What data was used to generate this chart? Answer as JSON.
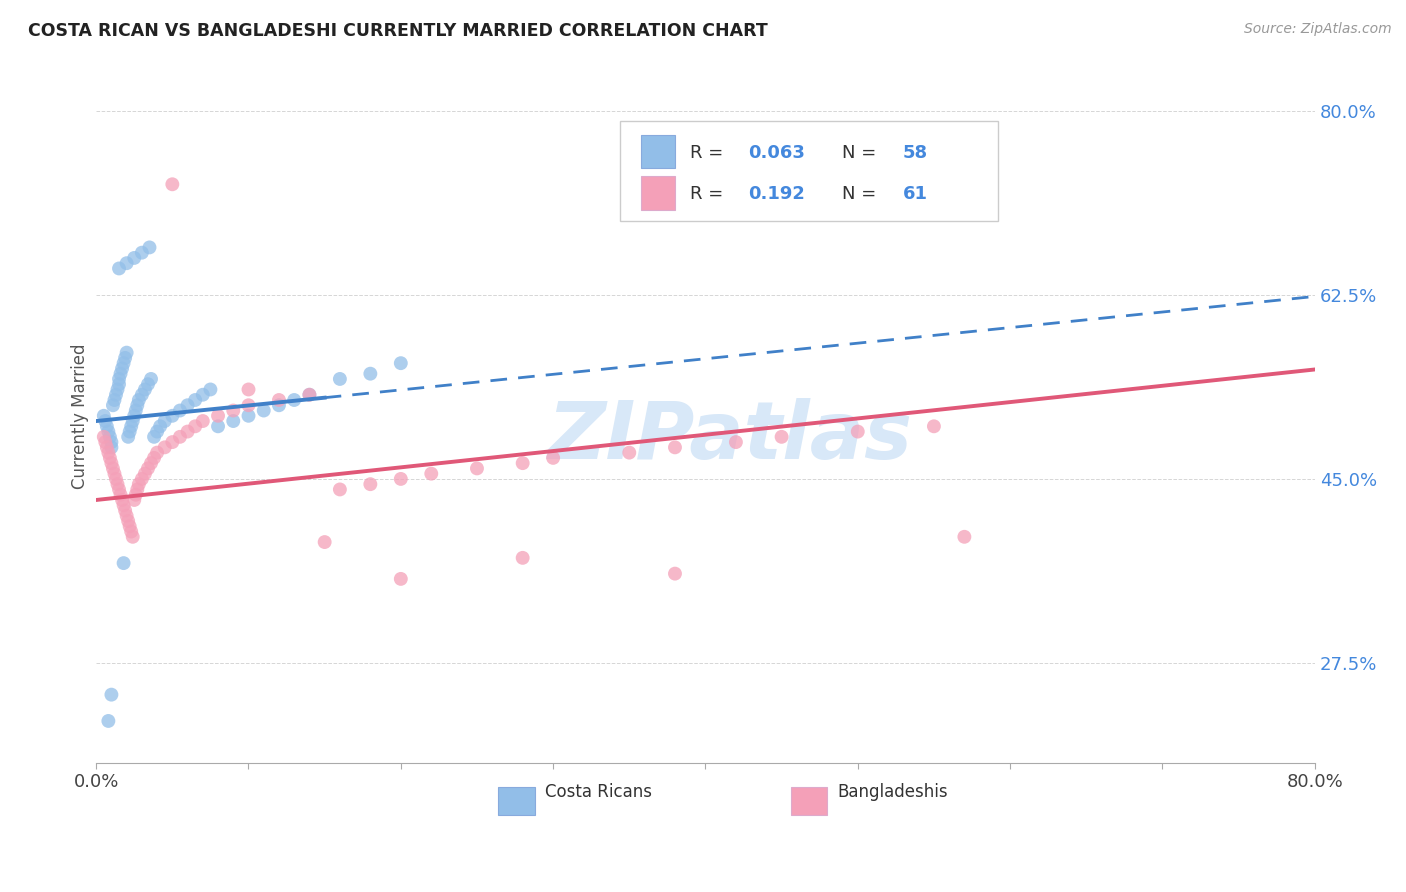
{
  "title": "COSTA RICAN VS BANGLADESHI CURRENTLY MARRIED CORRELATION CHART",
  "source": "Source: ZipAtlas.com",
  "ylabel": "Currently Married",
  "xlim": [
    0.0,
    0.8
  ],
  "ylim": [
    0.18,
    0.84
  ],
  "yticks": [
    0.275,
    0.45,
    0.625,
    0.8
  ],
  "ytick_labels": [
    "27.5%",
    "45.0%",
    "62.5%",
    "80.0%"
  ],
  "xtick_vals": [
    0.0,
    0.1,
    0.2,
    0.3,
    0.4,
    0.5,
    0.6,
    0.7,
    0.8
  ],
  "blue_color": "#92BEE8",
  "pink_color": "#F4A0B8",
  "trend_blue": "#4080C8",
  "trend_pink": "#E05878",
  "watermark_color": "#D8E8F8",
  "background": "#FFFFFF",
  "grid_color": "#CCCCCC",
  "r1": "0.063",
  "n1": "58",
  "r2": "0.192",
  "n2": "61",
  "legend_text_color": "#333333",
  "legend_value_color": "#4488DD",
  "cr_x": [
    0.005,
    0.006,
    0.007,
    0.008,
    0.009,
    0.01,
    0.01,
    0.011,
    0.012,
    0.013,
    0.014,
    0.015,
    0.015,
    0.016,
    0.017,
    0.018,
    0.019,
    0.02,
    0.021,
    0.022,
    0.023,
    0.024,
    0.025,
    0.026,
    0.027,
    0.028,
    0.03,
    0.032,
    0.034,
    0.036,
    0.038,
    0.04,
    0.042,
    0.045,
    0.05,
    0.055,
    0.06,
    0.065,
    0.07,
    0.075,
    0.08,
    0.09,
    0.1,
    0.11,
    0.12,
    0.13,
    0.14,
    0.16,
    0.18,
    0.2,
    0.015,
    0.02,
    0.025,
    0.03,
    0.035,
    0.01,
    0.008,
    0.018
  ],
  "cr_y": [
    0.51,
    0.505,
    0.5,
    0.495,
    0.49,
    0.485,
    0.48,
    0.52,
    0.525,
    0.53,
    0.535,
    0.54,
    0.545,
    0.55,
    0.555,
    0.56,
    0.565,
    0.57,
    0.49,
    0.495,
    0.5,
    0.505,
    0.51,
    0.515,
    0.52,
    0.525,
    0.53,
    0.535,
    0.54,
    0.545,
    0.49,
    0.495,
    0.5,
    0.505,
    0.51,
    0.515,
    0.52,
    0.525,
    0.53,
    0.535,
    0.5,
    0.505,
    0.51,
    0.515,
    0.52,
    0.525,
    0.53,
    0.545,
    0.55,
    0.56,
    0.65,
    0.655,
    0.66,
    0.665,
    0.67,
    0.245,
    0.22,
    0.37
  ],
  "bd_x": [
    0.005,
    0.006,
    0.007,
    0.008,
    0.009,
    0.01,
    0.011,
    0.012,
    0.013,
    0.014,
    0.015,
    0.016,
    0.017,
    0.018,
    0.019,
    0.02,
    0.021,
    0.022,
    0.023,
    0.024,
    0.025,
    0.026,
    0.027,
    0.028,
    0.03,
    0.032,
    0.034,
    0.036,
    0.038,
    0.04,
    0.045,
    0.05,
    0.055,
    0.06,
    0.065,
    0.07,
    0.08,
    0.09,
    0.1,
    0.12,
    0.14,
    0.16,
    0.18,
    0.2,
    0.22,
    0.25,
    0.28,
    0.3,
    0.35,
    0.38,
    0.42,
    0.45,
    0.5,
    0.55,
    0.57,
    0.05,
    0.1,
    0.15,
    0.2,
    0.28,
    0.38
  ],
  "bd_y": [
    0.49,
    0.485,
    0.48,
    0.475,
    0.47,
    0.465,
    0.46,
    0.455,
    0.45,
    0.445,
    0.44,
    0.435,
    0.43,
    0.425,
    0.42,
    0.415,
    0.41,
    0.405,
    0.4,
    0.395,
    0.43,
    0.435,
    0.44,
    0.445,
    0.45,
    0.455,
    0.46,
    0.465,
    0.47,
    0.475,
    0.48,
    0.485,
    0.49,
    0.495,
    0.5,
    0.505,
    0.51,
    0.515,
    0.52,
    0.525,
    0.53,
    0.44,
    0.445,
    0.45,
    0.455,
    0.46,
    0.465,
    0.47,
    0.475,
    0.48,
    0.485,
    0.49,
    0.495,
    0.5,
    0.395,
    0.73,
    0.535,
    0.39,
    0.355,
    0.375,
    0.36
  ]
}
